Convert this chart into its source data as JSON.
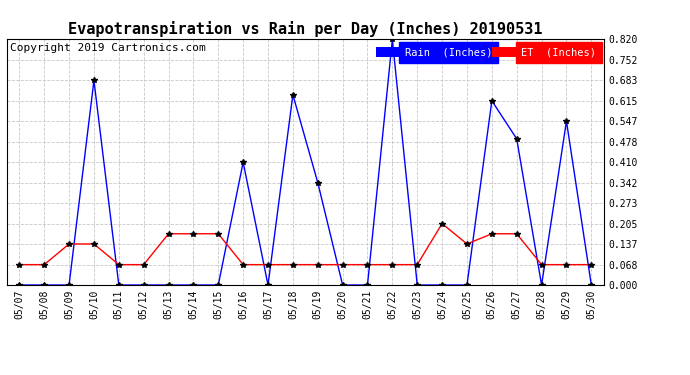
{
  "title": "Evapotranspiration vs Rain per Day (Inches) 20190531",
  "copyright": "Copyright 2019 Cartronics.com",
  "dates": [
    "05/07",
    "05/08",
    "05/09",
    "05/10",
    "05/11",
    "05/12",
    "05/13",
    "05/14",
    "05/15",
    "05/16",
    "05/17",
    "05/18",
    "05/19",
    "05/20",
    "05/21",
    "05/22",
    "05/23",
    "05/24",
    "05/25",
    "05/26",
    "05/27",
    "05/28",
    "05/29",
    "05/30"
  ],
  "rain_vals": [
    0.0,
    0.0,
    0.0,
    0.683,
    0.0,
    0.0,
    0.0,
    0.0,
    0.0,
    0.41,
    0.0,
    0.635,
    0.342,
    0.0,
    0.0,
    0.82,
    0.0,
    0.0,
    0.0,
    0.615,
    0.488,
    0.0,
    0.547,
    0.0
  ],
  "et_vals": [
    0.068,
    0.068,
    0.137,
    0.137,
    0.068,
    0.068,
    0.171,
    0.171,
    0.171,
    0.068,
    0.068,
    0.068,
    0.068,
    0.068,
    0.068,
    0.068,
    0.068,
    0.205,
    0.137,
    0.171,
    0.171,
    0.068,
    0.068,
    0.068
  ],
  "rain_color": "#0000ff",
  "et_color": "#ff0000",
  "bg_color": "#ffffff",
  "grid_color": "#c8c8c8",
  "title_fontsize": 11,
  "copyright_fontsize": 8,
  "legend_rain_label": "Rain  (Inches)",
  "legend_et_label": "ET  (Inches)",
  "ymax": 0.82,
  "yticks": [
    0.0,
    0.068,
    0.137,
    0.205,
    0.273,
    0.342,
    0.41,
    0.478,
    0.547,
    0.615,
    0.683,
    0.752,
    0.82
  ]
}
